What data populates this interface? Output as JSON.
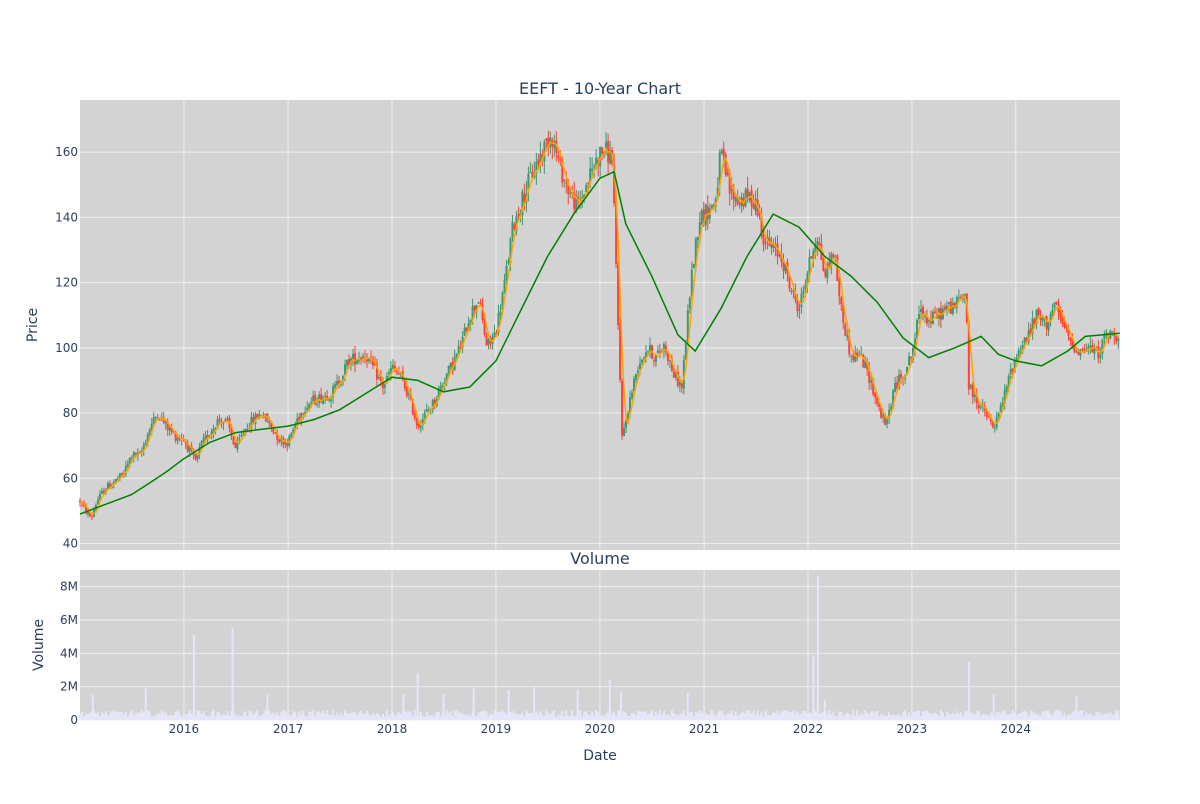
{
  "chart_data": [
    {
      "type": "candlestick",
      "title": "EEFT - 10-Year Chart",
      "xlabel": "",
      "ylabel": "Price",
      "ylim": [
        38,
        176
      ],
      "xlim": [
        "2015-01-01",
        "2025-01-01"
      ],
      "x_ticks": [
        "2016",
        "2017",
        "2018",
        "2019",
        "2020",
        "2021",
        "2022",
        "2023",
        "2024"
      ],
      "y_ticks": [
        40,
        60,
        80,
        100,
        120,
        140,
        160
      ],
      "grid": true,
      "legend": "none",
      "colors": {
        "increasing": "#3d9970",
        "decreasing": "#ff4136",
        "short_ma": "#ffa500",
        "long_ma": "#008000",
        "plot_bg": "#d3d3d3",
        "grid": "#eeeeee",
        "text": "#2a3f5f"
      },
      "price_path": [
        [
          "2015-01-01",
          53
        ],
        [
          "2015-01-20",
          50
        ],
        [
          "2015-02-10",
          48
        ],
        [
          "2015-03-01",
          53
        ],
        [
          "2015-04-01",
          57
        ],
        [
          "2015-05-01",
          59
        ],
        [
          "2015-06-01",
          61
        ],
        [
          "2015-07-01",
          67
        ],
        [
          "2015-08-01",
          67
        ],
        [
          "2015-09-01",
          75
        ],
        [
          "2015-10-01",
          80
        ],
        [
          "2015-11-01",
          76
        ],
        [
          "2015-12-01",
          73
        ],
        [
          "2016-01-01",
          72
        ],
        [
          "2016-02-10",
          65
        ],
        [
          "2016-03-01",
          70
        ],
        [
          "2016-04-01",
          74
        ],
        [
          "2016-05-01",
          78
        ],
        [
          "2016-06-01",
          77
        ],
        [
          "2016-07-01",
          69
        ],
        [
          "2016-08-01",
          75
        ],
        [
          "2016-09-01",
          78
        ],
        [
          "2016-10-01",
          80
        ],
        [
          "2016-11-01",
          76
        ],
        [
          "2016-12-01",
          72
        ],
        [
          "2017-01-01",
          71
        ],
        [
          "2017-02-01",
          78
        ],
        [
          "2017-03-01",
          82
        ],
        [
          "2017-04-01",
          84
        ],
        [
          "2017-05-01",
          85
        ],
        [
          "2017-06-01",
          86
        ],
        [
          "2017-07-01",
          90
        ],
        [
          "2017-08-01",
          96
        ],
        [
          "2017-09-01",
          97
        ],
        [
          "2017-10-01",
          98
        ],
        [
          "2017-11-01",
          93
        ],
        [
          "2017-12-01",
          88
        ],
        [
          "2018-01-01",
          94
        ],
        [
          "2018-02-01",
          91
        ],
        [
          "2018-03-01",
          85
        ],
        [
          "2018-04-01",
          76
        ],
        [
          "2018-05-01",
          80
        ],
        [
          "2018-06-01",
          84
        ],
        [
          "2018-07-01",
          90
        ],
        [
          "2018-08-01",
          95
        ],
        [
          "2018-09-01",
          101
        ],
        [
          "2018-10-01",
          110
        ],
        [
          "2018-11-01",
          115
        ],
        [
          "2018-12-01",
          100
        ],
        [
          "2019-01-01",
          105
        ],
        [
          "2019-02-01",
          120
        ],
        [
          "2019-03-01",
          137
        ],
        [
          "2019-04-01",
          145
        ],
        [
          "2019-05-01",
          152
        ],
        [
          "2019-06-01",
          158
        ],
        [
          "2019-07-15",
          166
        ],
        [
          "2019-08-15",
          155
        ],
        [
          "2019-09-15",
          148
        ],
        [
          "2019-10-15",
          143
        ],
        [
          "2019-11-15",
          150
        ],
        [
          "2019-12-15",
          157
        ],
        [
          "2020-01-15",
          161
        ],
        [
          "2020-02-15",
          158
        ],
        [
          "2020-03-01",
          115
        ],
        [
          "2020-03-20",
          72
        ],
        [
          "2020-04-15",
          84
        ],
        [
          "2020-05-15",
          95
        ],
        [
          "2020-06-15",
          100
        ],
        [
          "2020-07-15",
          97
        ],
        [
          "2020-08-15",
          101
        ],
        [
          "2020-09-15",
          92
        ],
        [
          "2020-10-15",
          88
        ],
        [
          "2020-11-15",
          120
        ],
        [
          "2020-12-15",
          140
        ],
        [
          "2021-01-15",
          142
        ],
        [
          "2021-02-10",
          145
        ],
        [
          "2021-03-01",
          160
        ],
        [
          "2021-04-01",
          148
        ],
        [
          "2021-05-01",
          145
        ],
        [
          "2021-06-01",
          146
        ],
        [
          "2021-07-01",
          145
        ],
        [
          "2021-08-01",
          133
        ],
        [
          "2021-09-01",
          130
        ],
        [
          "2021-10-01",
          128
        ],
        [
          "2021-11-01",
          118
        ],
        [
          "2021-12-01",
          112
        ],
        [
          "2022-01-01",
          124
        ],
        [
          "2022-02-01",
          135
        ],
        [
          "2022-03-01",
          122
        ],
        [
          "2022-04-01",
          130
        ],
        [
          "2022-05-01",
          110
        ],
        [
          "2022-06-01",
          97
        ],
        [
          "2022-07-01",
          98
        ],
        [
          "2022-08-01",
          92
        ],
        [
          "2022-09-01",
          83
        ],
        [
          "2022-10-01",
          76
        ],
        [
          "2022-11-01",
          88
        ],
        [
          "2022-12-01",
          92
        ],
        [
          "2023-01-01",
          98
        ],
        [
          "2023-02-01",
          113
        ],
        [
          "2023-03-01",
          108
        ],
        [
          "2023-04-01",
          110
        ],
        [
          "2023-05-01",
          112
        ],
        [
          "2023-06-01",
          113
        ],
        [
          "2023-07-10",
          117
        ],
        [
          "2023-07-20",
          88
        ],
        [
          "2023-08-15",
          84
        ],
        [
          "2023-09-15",
          80
        ],
        [
          "2023-10-15",
          75
        ],
        [
          "2023-11-15",
          83
        ],
        [
          "2023-12-15",
          93
        ],
        [
          "2024-01-15",
          100
        ],
        [
          "2024-02-15",
          104
        ],
        [
          "2024-03-15",
          110
        ],
        [
          "2024-04-15",
          107
        ],
        [
          "2024-05-15",
          113
        ],
        [
          "2024-06-15",
          107
        ],
        [
          "2024-07-15",
          101
        ],
        [
          "2024-08-15",
          99
        ],
        [
          "2024-09-15",
          100
        ],
        [
          "2024-10-15",
          98
        ],
        [
          "2024-11-15",
          104
        ],
        [
          "2024-12-31",
          104
        ]
      ],
      "long_ma": [
        [
          "2015-01-01",
          49
        ],
        [
          "2015-04-01",
          52
        ],
        [
          "2015-07-01",
          55
        ],
        [
          "2015-09-01",
          58.5
        ],
        [
          "2015-11-01",
          62
        ],
        [
          "2016-01-01",
          66
        ],
        [
          "2016-04-01",
          71
        ],
        [
          "2016-07-01",
          74
        ],
        [
          "2016-10-01",
          75
        ],
        [
          "2017-01-01",
          76
        ],
        [
          "2017-04-01",
          78
        ],
        [
          "2017-07-01",
          81
        ],
        [
          "2017-10-01",
          86
        ],
        [
          "2018-01-01",
          91
        ],
        [
          "2018-04-01",
          90
        ],
        [
          "2018-07-01",
          86.5
        ],
        [
          "2018-10-01",
          88
        ],
        [
          "2019-01-01",
          96
        ],
        [
          "2019-04-01",
          112
        ],
        [
          "2019-07-01",
          128
        ],
        [
          "2019-10-01",
          141
        ],
        [
          "2020-01-01",
          152
        ],
        [
          "2020-02-20",
          154
        ],
        [
          "2020-04-01",
          138
        ],
        [
          "2020-07-01",
          122
        ],
        [
          "2020-10-01",
          104
        ],
        [
          "2020-12-01",
          99
        ],
        [
          "2021-03-01",
          112
        ],
        [
          "2021-06-01",
          128
        ],
        [
          "2021-09-01",
          141
        ],
        [
          "2021-12-01",
          137
        ],
        [
          "2022-03-01",
          128
        ],
        [
          "2022-06-01",
          122
        ],
        [
          "2022-09-01",
          114
        ],
        [
          "2022-12-01",
          103
        ],
        [
          "2023-03-01",
          97
        ],
        [
          "2023-06-01",
          100
        ],
        [
          "2023-09-01",
          103.5
        ],
        [
          "2023-11-01",
          98
        ],
        [
          "2024-01-01",
          96
        ],
        [
          "2024-04-01",
          94.5
        ],
        [
          "2024-07-01",
          99
        ],
        [
          "2024-09-01",
          103.5
        ],
        [
          "2024-12-31",
          104.5
        ]
      ]
    },
    {
      "type": "bar",
      "title": "Volume",
      "xlabel": "Date",
      "ylabel": "Volume",
      "ylim": [
        0,
        9000000
      ],
      "y_ticks": [
        0,
        2000000,
        4000000,
        6000000,
        8000000
      ],
      "y_tick_labels": [
        "0",
        "2M",
        "4M",
        "6M",
        "8M"
      ],
      "x_ticks": [
        "2016",
        "2017",
        "2018",
        "2019",
        "2020",
        "2021",
        "2022",
        "2023",
        "2024"
      ],
      "bar_color": "#e6e6fa",
      "baseline_volume": 400000,
      "spikes": [
        [
          "2015-02-15",
          1500000
        ],
        [
          "2015-08-20",
          1900000
        ],
        [
          "2016-02-05",
          5100000
        ],
        [
          "2016-06-20",
          5500000
        ],
        [
          "2016-10-20",
          1500000
        ],
        [
          "2018-02-10",
          1500000
        ],
        [
          "2018-04-01",
          2800000
        ],
        [
          "2018-07-01",
          1500000
        ],
        [
          "2018-10-15",
          1900000
        ],
        [
          "2019-02-15",
          1800000
        ],
        [
          "2019-05-15",
          2000000
        ],
        [
          "2019-10-15",
          1800000
        ],
        [
          "2020-02-05",
          2400000
        ],
        [
          "2020-03-15",
          1700000
        ],
        [
          "2020-11-05",
          1600000
        ],
        [
          "2022-01-20",
          3800000
        ],
        [
          "2022-02-05",
          8600000
        ],
        [
          "2022-03-01",
          1200000
        ],
        [
          "2023-07-20",
          3500000
        ],
        [
          "2023-10-15",
          1500000
        ],
        [
          "2024-08-01",
          1400000
        ]
      ]
    }
  ]
}
